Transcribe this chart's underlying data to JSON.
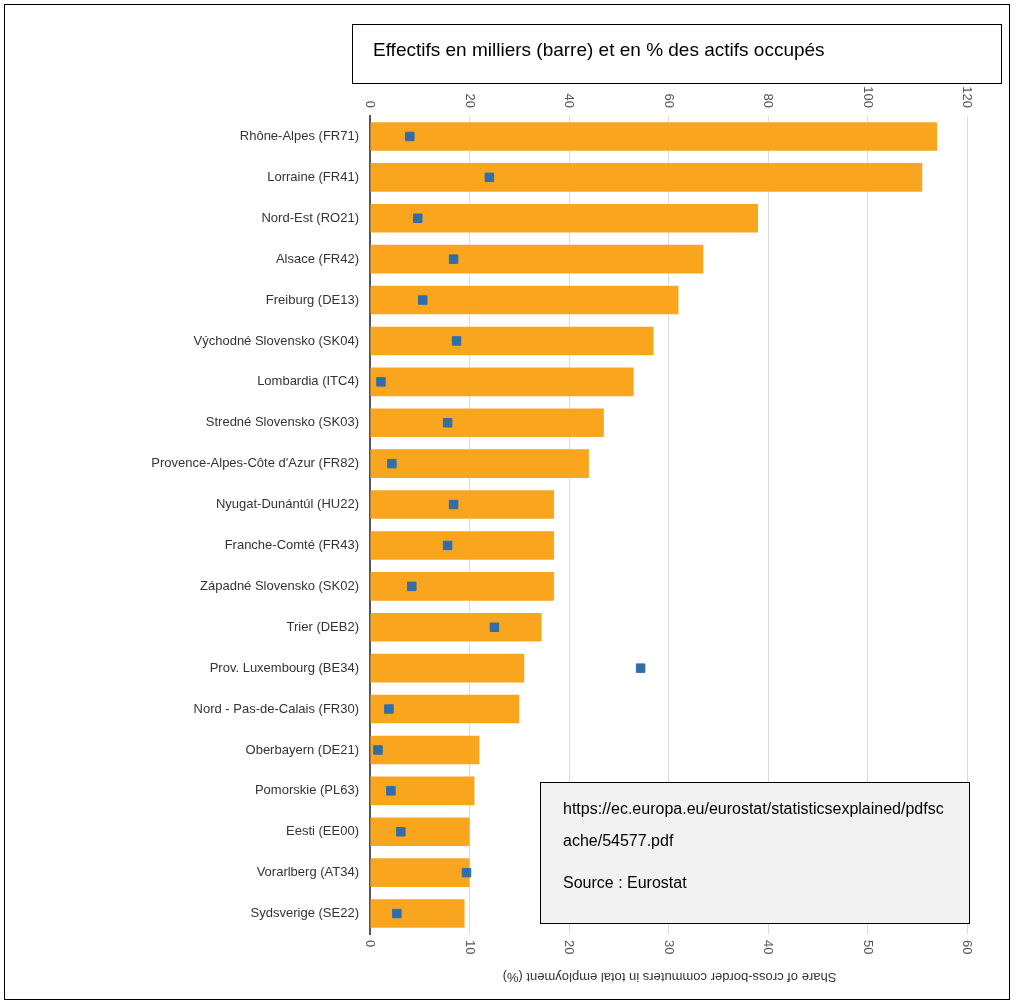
{
  "chart_data": {
    "type": "bar",
    "orientation": "horizontal",
    "title": "Effectifs en milliers (barre) et en % des actifs occupés",
    "x2label": "Share of cross-border commuters in total employment (%)",
    "categories": [
      "Rhône-Alpes (FR71)",
      "Lorraine (FR41)",
      "Nord-Est (RO21)",
      "Alsace (FR42)",
      "Freiburg (DE13)",
      "Východné Slovensko (SK04)",
      "Lombardia (ITC4)",
      "Stredné Slovensko (SK03)",
      "Provence-Alpes-Côte d'Azur (FR82)",
      "Nyugat-Dunántúl (HU22)",
      "Franche-Comté (FR43)",
      "Západné Slovensko (SK02)",
      "Trier (DEB2)",
      "Prov. Luxembourg (BE34)",
      "Nord - Pas-de-Calais (FR30)",
      "Oberbayern (DE21)",
      "Pomorskie (PL63)",
      "Eesti (EE00)",
      "Vorarlberg (AT34)",
      "Sydsverige (SE22)"
    ],
    "series": [
      {
        "type": "bar",
        "color": "#f9a61e",
        "values": [
          114,
          111,
          78,
          67,
          62,
          57,
          53,
          47,
          44,
          37,
          37,
          37,
          34.5,
          31,
          30,
          22,
          21,
          20,
          20,
          19
        ]
      },
      {
        "type": "scatter",
        "axis": "x2",
        "marker": "square",
        "color": "#2f6eaa",
        "values": [
          4,
          12,
          4.8,
          8.4,
          5.3,
          8.7,
          1.1,
          7.8,
          2.2,
          8.4,
          7.8,
          4.2,
          12.5,
          27.2,
          1.9,
          0.8,
          2.1,
          3.1,
          9.7,
          2.7
        ]
      }
    ],
    "xlim": [
      0,
      120
    ],
    "xticks": [
      0,
      20,
      40,
      60,
      80,
      100,
      120
    ],
    "x2lim": [
      0,
      60
    ],
    "x2ticks": [
      0,
      10,
      20,
      30,
      40,
      50,
      60
    ],
    "grid": "x",
    "legend": false,
    "annotations": [
      "https://ec.europa.eu/eurostat/statisticsexplained/pdfscache/54577.pdf",
      "Source : Eurostat"
    ]
  }
}
